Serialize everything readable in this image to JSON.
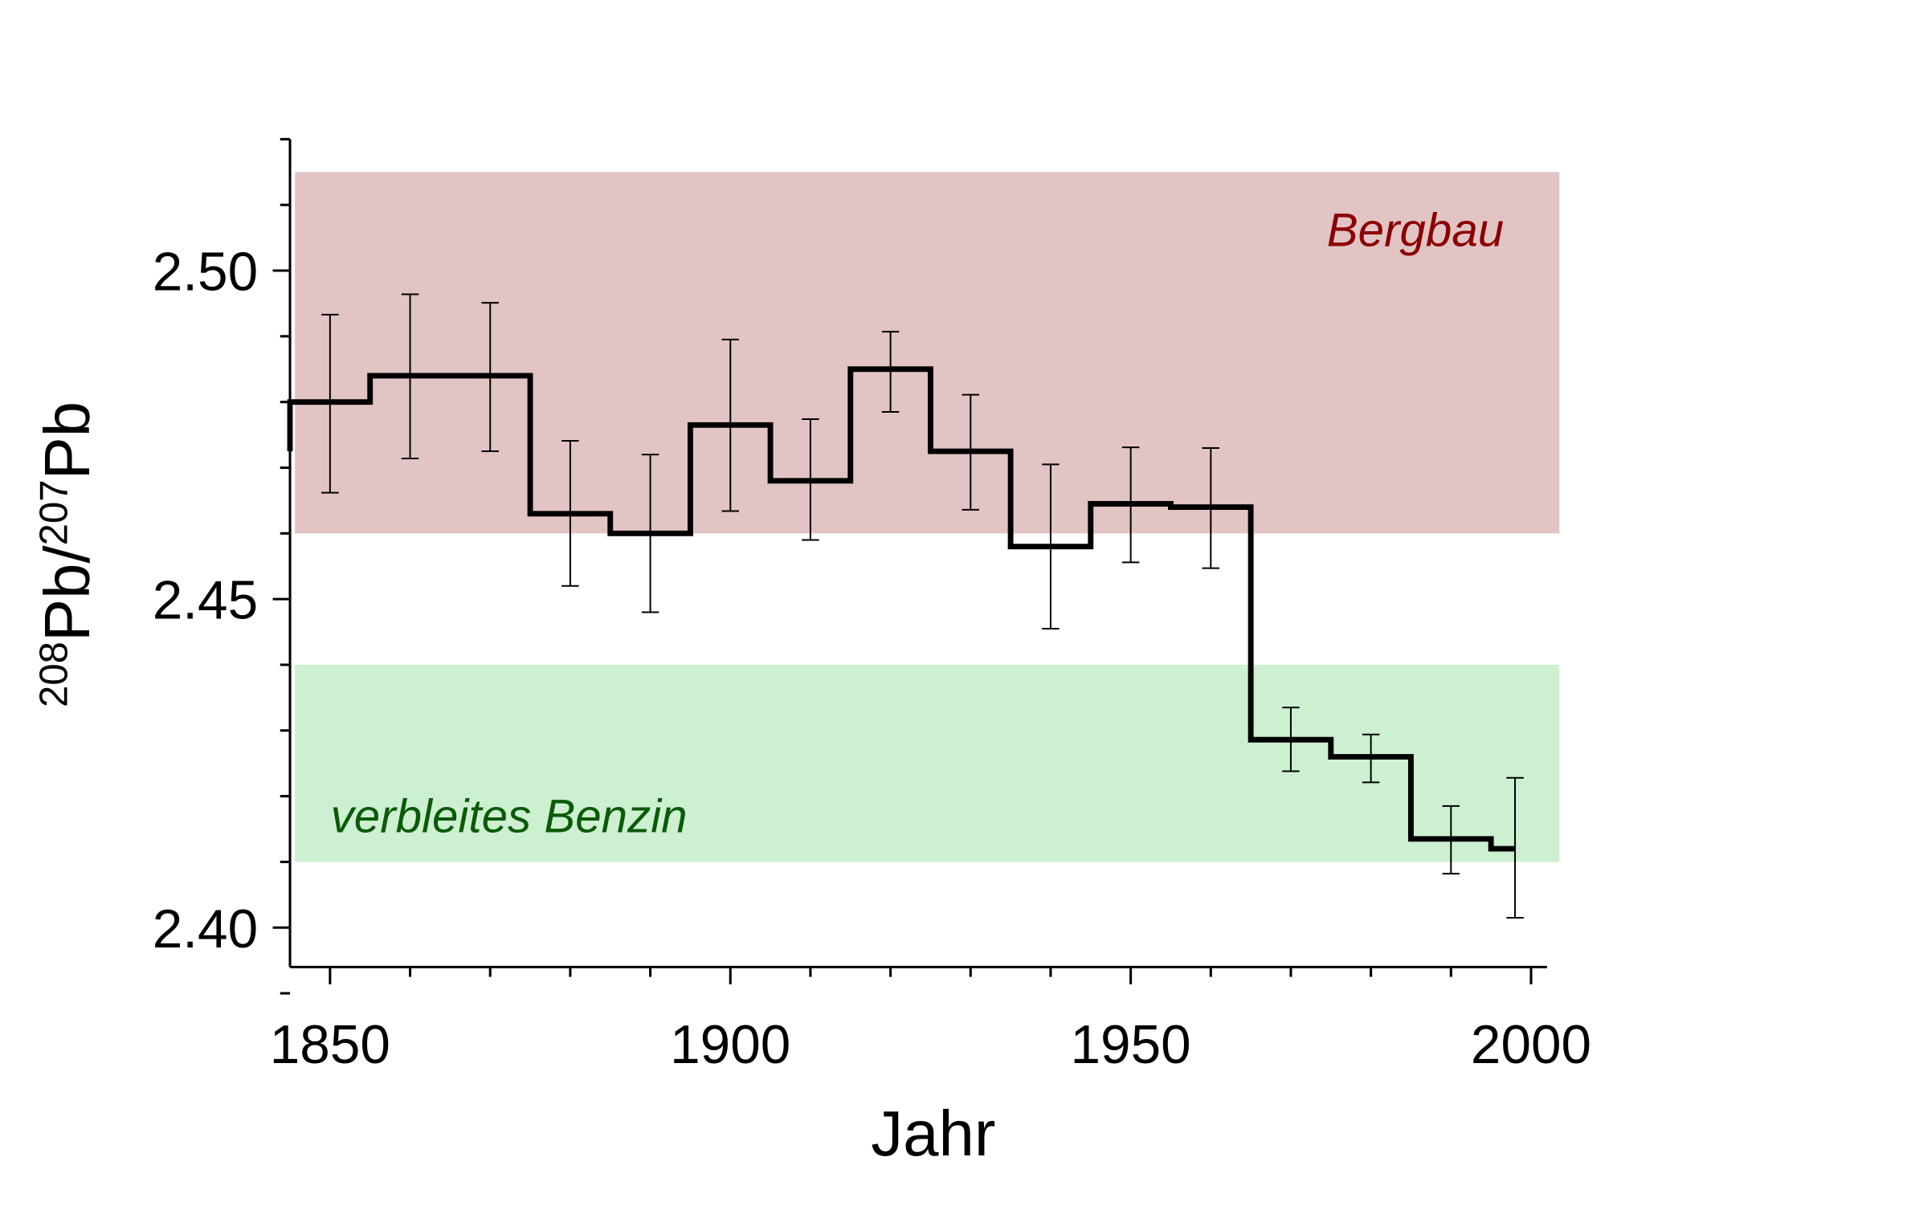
{
  "chart_data": {
    "type": "line",
    "line_style": "step",
    "xlabel": "Jahr",
    "ylabel": {
      "pre_sup": "208",
      "a": "Pb/",
      "mid_sup": "207",
      "b": "Pb"
    },
    "xlim": [
      1845,
      2002
    ],
    "ylim": [
      2.394,
      2.52
    ],
    "x_ticks": [
      1850,
      1900,
      1950,
      2000
    ],
    "x_tick_labels": [
      "1850",
      "1900",
      "1950",
      "2000"
    ],
    "y_ticks": [
      2.4,
      2.45,
      2.5
    ],
    "y_tick_labels": [
      "2.40",
      "2.45",
      "2.50"
    ],
    "grid": false,
    "bands": [
      {
        "label": "Bergbau",
        "y_range": [
          2.46,
          2.515
        ],
        "fill": "#e2c4c5",
        "text_color": "#8b0000"
      },
      {
        "label": "verbleites Benzin",
        "y_range": [
          2.41,
          2.44
        ],
        "fill": "#cdf0d0",
        "text_color": "#0a5a0a"
      }
    ],
    "steps": [
      {
        "x0": 1845,
        "x1": 1855,
        "y": 2.48
      },
      {
        "x0": 1855,
        "x1": 1875,
        "y": 2.484
      },
      {
        "x0": 1875,
        "x1": 1885,
        "y": 2.463
      },
      {
        "x0": 1885,
        "x1": 1895,
        "y": 2.46
      },
      {
        "x0": 1895,
        "x1": 1905,
        "y": 2.4765
      },
      {
        "x0": 1905,
        "x1": 1915,
        "y": 2.468
      },
      {
        "x0": 1915,
        "x1": 1925,
        "y": 2.485
      },
      {
        "x0": 1925,
        "x1": 1935,
        "y": 2.4725
      },
      {
        "x0": 1935,
        "x1": 1945,
        "y": 2.458
      },
      {
        "x0": 1945,
        "x1": 1955,
        "y": 2.4645
      },
      {
        "x0": 1955,
        "x1": 1965,
        "y": 2.464
      },
      {
        "x0": 1965,
        "x1": 1975,
        "y": 2.4286
      },
      {
        "x0": 1975,
        "x1": 1985,
        "y": 2.426
      },
      {
        "x0": 1985,
        "x1": 1995,
        "y": 2.4135
      },
      {
        "x0": 1995,
        "x1": 1998,
        "y": 2.412
      }
    ],
    "error_bars": [
      {
        "x": 1850,
        "low": 2.4662,
        "high": 2.4933
      },
      {
        "x": 1860,
        "low": 2.4714,
        "high": 2.4964
      },
      {
        "x": 1870,
        "low": 2.4725,
        "high": 2.4951
      },
      {
        "x": 1880,
        "low": 2.452,
        "high": 2.4741
      },
      {
        "x": 1890,
        "low": 2.448,
        "high": 2.472
      },
      {
        "x": 1900,
        "low": 2.4634,
        "high": 2.4895
      },
      {
        "x": 1910,
        "low": 2.459,
        "high": 2.4774
      },
      {
        "x": 1920,
        "low": 2.4785,
        "high": 2.4907
      },
      {
        "x": 1930,
        "low": 2.4636,
        "high": 2.4811
      },
      {
        "x": 1940,
        "low": 2.4455,
        "high": 2.4705
      },
      {
        "x": 1950,
        "low": 2.4556,
        "high": 2.4731
      },
      {
        "x": 1960,
        "low": 2.4547,
        "high": 2.473
      },
      {
        "x": 1970,
        "low": 2.4238,
        "high": 2.4335
      },
      {
        "x": 1980,
        "low": 2.4221,
        "high": 2.4294
      },
      {
        "x": 1990,
        "low": 2.4082,
        "high": 2.4185
      },
      {
        "x": 1998,
        "low": 2.4015,
        "high": 2.4228
      }
    ]
  }
}
